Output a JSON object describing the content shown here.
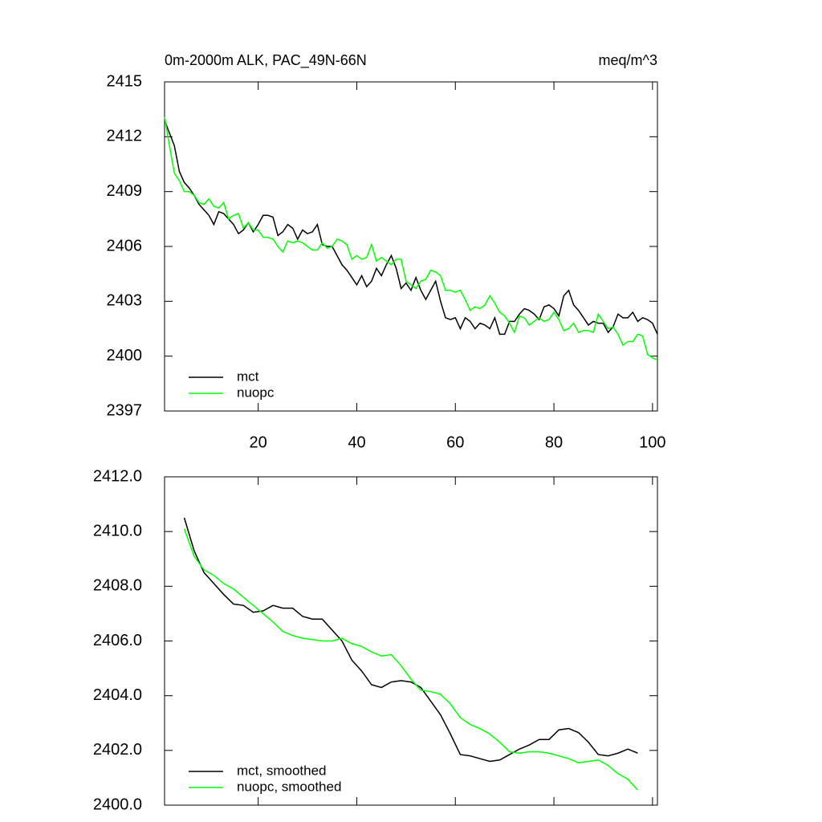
{
  "chart_data": [
    {
      "type": "line",
      "title": "0m-2000m ALK, PAC_49N-66N",
      "units_label": "meq/m^3",
      "x": [
        1,
        2,
        3,
        4,
        5,
        6,
        7,
        8,
        9,
        10,
        11,
        12,
        13,
        14,
        15,
        16,
        17,
        18,
        19,
        20,
        21,
        22,
        23,
        24,
        25,
        26,
        27,
        28,
        29,
        30,
        31,
        32,
        33,
        34,
        35,
        36,
        37,
        38,
        39,
        40,
        41,
        42,
        43,
        44,
        45,
        46,
        47,
        48,
        49,
        50,
        51,
        52,
        53,
        54,
        55,
        56,
        57,
        58,
        59,
        60,
        61,
        62,
        63,
        64,
        65,
        66,
        67,
        68,
        69,
        70,
        71,
        72,
        73,
        74,
        75,
        76,
        77,
        78,
        79,
        80,
        81,
        82,
        83,
        84,
        85,
        86,
        87,
        88,
        89,
        90,
        91,
        92,
        93,
        94,
        95,
        96,
        97,
        98,
        99,
        100,
        101
      ],
      "series": [
        {
          "name": "mct",
          "color": "#000000",
          "values": [
            2412.9,
            2412.2,
            2411.5,
            2410.1,
            2409.5,
            2409.2,
            2408.8,
            2408.3,
            2408.0,
            2407.7,
            2407.2,
            2407.9,
            2407.8,
            2407.5,
            2407.2,
            2406.7,
            2406.9,
            2407.3,
            2406.8,
            2407.2,
            2407.7,
            2407.7,
            2407.6,
            2406.6,
            2406.8,
            2407.2,
            2407.0,
            2406.4,
            2406.9,
            2406.7,
            2406.8,
            2407.2,
            2406.1,
            2406.0,
            2406.0,
            2405.5,
            2405.0,
            2404.7,
            2404.3,
            2403.9,
            2404.4,
            2403.8,
            2404.1,
            2404.8,
            2404.4,
            2405.0,
            2405.5,
            2404.8,
            2403.7,
            2404.0,
            2403.6,
            2404.3,
            2403.6,
            2403.1,
            2403.6,
            2404.1,
            2403.0,
            2402.1,
            2402.0,
            2402.1,
            2401.5,
            2402.1,
            2401.9,
            2401.5,
            2401.8,
            2401.7,
            2401.5,
            2402.1,
            2401.2,
            2401.2,
            2401.9,
            2401.9,
            2402.3,
            2402.6,
            2402.5,
            2402.3,
            2402.0,
            2402.7,
            2402.8,
            2402.6,
            2402.2,
            2403.3,
            2403.6,
            2402.8,
            2402.5,
            2402.1,
            2401.7,
            2401.9,
            2401.8,
            2401.8,
            2401.3,
            2401.6,
            2402.3,
            2402.1,
            2402.1,
            2402.4,
            2401.9,
            2402.1,
            2402.0,
            2401.8,
            2401.2
          ]
        },
        {
          "name": "nuopc",
          "color": "#00ff00",
          "values": [
            2413.1,
            2411.5,
            2410.0,
            2409.6,
            2409.0,
            2409.0,
            2408.8,
            2408.4,
            2408.3,
            2408.6,
            2408.2,
            2408.1,
            2408.4,
            2407.5,
            2407.7,
            2407.8,
            2407.0,
            2407.3,
            2406.9,
            2406.9,
            2406.5,
            2406.5,
            2406.4,
            2406.0,
            2405.7,
            2406.3,
            2406.2,
            2406.3,
            2406.2,
            2406.0,
            2405.8,
            2405.8,
            2406.2,
            2405.9,
            2406.0,
            2406.4,
            2406.3,
            2406.1,
            2405.3,
            2405.5,
            2405.3,
            2405.4,
            2406.1,
            2405.2,
            2405.4,
            2405.2,
            2405.0,
            2405.3,
            2405.3,
            2404.1,
            2403.9,
            2403.7,
            2404.1,
            2404.2,
            2404.7,
            2404.6,
            2404.4,
            2403.6,
            2403.6,
            2403.5,
            2403.6,
            2403.1,
            2402.5,
            2402.7,
            2402.6,
            2402.8,
            2403.3,
            2402.9,
            2402.4,
            2402.2,
            2401.8,
            2401.3,
            2402.2,
            2402.1,
            2401.7,
            2401.9,
            2402.1,
            2401.9,
            2402.0,
            2402.4,
            2402.0,
            2401.4,
            2401.5,
            2401.8,
            2401.3,
            2401.4,
            2401.4,
            2401.3,
            2402.3,
            2401.9,
            2401.5,
            2401.6,
            2401.2,
            2400.6,
            2400.8,
            2400.8,
            2401.2,
            2401.1,
            2400.1,
            2399.9,
            2399.8
          ]
        }
      ],
      "xlim": [
        1,
        101
      ],
      "xticks": [
        20,
        40,
        60,
        80,
        100
      ],
      "ylim": [
        2397,
        2415
      ],
      "yticks": [
        2397,
        2400,
        2403,
        2406,
        2409,
        2412,
        2415
      ],
      "legend": "lower left"
    },
    {
      "type": "line",
      "x": [
        5,
        7,
        9,
        11,
        13,
        15,
        17,
        19,
        21,
        23,
        25,
        27,
        29,
        31,
        33,
        35,
        37,
        39,
        41,
        43,
        45,
        47,
        49,
        51,
        53,
        55,
        57,
        59,
        61,
        63,
        65,
        67,
        69,
        71,
        73,
        75,
        77,
        79,
        81,
        83,
        85,
        87,
        89,
        91,
        93,
        95,
        97
      ],
      "series": [
        {
          "name": "mct, smoothed",
          "color": "#000000",
          "values": [
            2410.5,
            2409.3,
            2408.5,
            2408.1,
            2407.7,
            2407.35,
            2407.3,
            2407.05,
            2407.1,
            2407.3,
            2407.2,
            2407.2,
            2406.9,
            2406.8,
            2406.8,
            2406.4,
            2406.0,
            2405.3,
            2404.9,
            2404.4,
            2404.3,
            2404.5,
            2404.55,
            2404.5,
            2404.3,
            2403.8,
            2403.3,
            2402.6,
            2401.85,
            2401.8,
            2401.7,
            2401.6,
            2401.65,
            2401.85,
            2402.05,
            2402.2,
            2402.4,
            2402.4,
            2402.75,
            2402.8,
            2402.65,
            2402.3,
            2401.85,
            2401.8,
            2401.9,
            2402.05,
            2401.9
          ]
        },
        {
          "name": "nuopc, smoothed",
          "color": "#00ff00",
          "values": [
            2410.1,
            2409.1,
            2408.6,
            2408.4,
            2408.1,
            2407.9,
            2407.6,
            2407.3,
            2407.0,
            2406.7,
            2406.35,
            2406.2,
            2406.1,
            2406.05,
            2406.0,
            2406.0,
            2406.1,
            2405.9,
            2405.8,
            2405.6,
            2405.45,
            2405.5,
            2405.1,
            2404.6,
            2404.2,
            2404.15,
            2404.05,
            2403.7,
            2403.2,
            2402.95,
            2402.8,
            2402.6,
            2402.3,
            2401.95,
            2401.9,
            2401.95,
            2401.95,
            2401.9,
            2401.8,
            2401.7,
            2401.55,
            2401.6,
            2401.65,
            2401.45,
            2401.15,
            2400.95,
            2400.55
          ]
        }
      ],
      "xlim": [
        1,
        101
      ],
      "xticks": [
        20,
        40,
        60,
        80,
        100
      ],
      "ylim": [
        2400,
        2412
      ],
      "yticks": [
        {
          "value": 2400,
          "label": "2400.0"
        },
        {
          "value": 2402,
          "label": "2402.0"
        },
        {
          "value": 2404,
          "label": "2404.0"
        },
        {
          "value": 2406,
          "label": "2406.0"
        },
        {
          "value": 2408,
          "label": "2408.0"
        },
        {
          "value": 2410,
          "label": "2410.0"
        },
        {
          "value": 2412,
          "label": "2412.0"
        }
      ],
      "legend": "lower left"
    }
  ]
}
